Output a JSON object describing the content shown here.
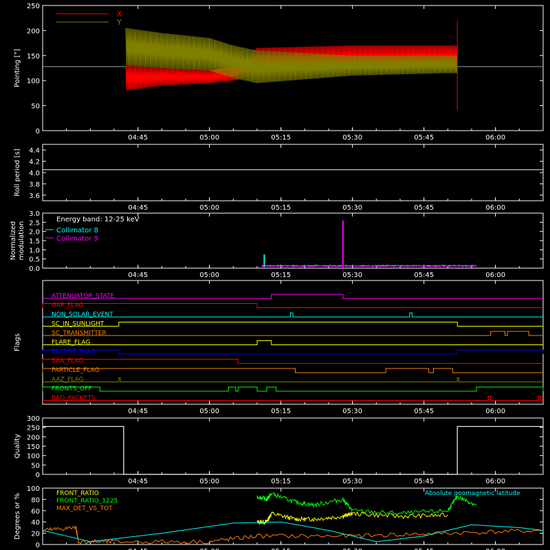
{
  "colors": {
    "background": "#000000",
    "axes": "#ffffff",
    "x_series": "#ff0000",
    "y_series": "#808000",
    "cyan": "#00ffff",
    "magenta": "#ff00ff",
    "green": "#00ff00",
    "yellow": "#ffff00",
    "orange": "#ff8000"
  },
  "chart_data": [
    {
      "type": "line",
      "ylabel": "Pointing [\"]",
      "ylim": [
        0,
        250
      ],
      "yticks": [
        "0",
        "50",
        "100",
        "150",
        "200",
        "250"
      ],
      "xticks": [
        "04:45",
        "05:00",
        "05:15",
        "05:30",
        "05:45",
        "06:00"
      ],
      "xlim_minutes": [
        265,
        370
      ],
      "legend": [
        "X",
        "Y"
      ],
      "series": [
        {
          "name": "X",
          "band": [
            {
              "t": 282.5,
              "low": 80,
              "high": 130
            },
            {
              "t": 290,
              "low": 90,
              "high": 125
            },
            {
              "t": 300,
              "low": 95,
              "high": 120
            },
            {
              "t": 305,
              "low": 100,
              "high": 128
            },
            {
              "t": 310,
              "low": 110,
              "high": 165
            },
            {
              "t": 330,
              "low": 120,
              "high": 170
            },
            {
              "t": 350,
              "low": 125,
              "high": 170
            }
          ],
          "flat_value": 128
        },
        {
          "name": "Y",
          "band": [
            {
              "t": 282.5,
              "low": 130,
              "high": 205
            },
            {
              "t": 290,
              "low": 125,
              "high": 195
            },
            {
              "t": 300,
              "low": 120,
              "high": 185
            },
            {
              "t": 305,
              "low": 105,
              "high": 170
            },
            {
              "t": 310,
              "low": 95,
              "high": 160
            },
            {
              "t": 330,
              "low": 110,
              "high": 150
            },
            {
              "t": 350,
              "low": 115,
              "high": 150
            }
          ],
          "flat_value": 128
        }
      ]
    },
    {
      "type": "line",
      "ylabel": "Roll period [s]",
      "ylim": [
        3.5,
        4.5
      ],
      "yticks": [
        "3.6",
        "3.8",
        "4.0",
        "4.2",
        "4.4"
      ],
      "xticks": [
        "04:45",
        "05:00",
        "05:15",
        "05:30",
        "05:45",
        "06:00"
      ],
      "series": [
        {
          "name": "",
          "value": 4.05
        }
      ]
    },
    {
      "type": "line",
      "ylabel": "Normalized modulation",
      "ylim": [
        0,
        3.0
      ],
      "yticks": [
        "0.0",
        "0.5",
        "1.0",
        "1.5",
        "2.0",
        "2.5",
        "3.0"
      ],
      "xticks": [
        "04:45",
        "05:00",
        "05:15",
        "05:30",
        "05:45",
        "06:00"
      ],
      "annotation": "Energy band: 12-25 keV",
      "legend": [
        "Collimator 8",
        "Collimator 9"
      ],
      "series": [
        {
          "name": "Collimator 8",
          "spikes": [
            {
              "t": 311.5,
              "v": 0.75
            },
            {
              "t": 320,
              "v": 0.15
            }
          ],
          "base": 0.1
        },
        {
          "name": "Collimator 9",
          "spikes": [
            {
              "t": 328,
              "v": 2.6
            }
          ],
          "base": 0.08
        }
      ]
    },
    {
      "type": "line",
      "ylabel": "Flags",
      "xticks": [
        "04:45",
        "05:00",
        "05:15",
        "05:30",
        "05:45",
        "06:00"
      ],
      "flags": [
        {
          "name": "ATTENUATOR_STATE",
          "color": "#ff00ff",
          "high": [
            [
              313,
              328
            ]
          ]
        },
        {
          "name": "GAP_FLAG",
          "color": "#ff0000",
          "high": [
            [
              265,
              310
            ]
          ]
        },
        {
          "name": "NON_SOLAR_EVENT",
          "color": "#00ffff",
          "high": [
            [
              317,
              317.5
            ],
            [
              342,
              342.5
            ]
          ]
        },
        {
          "name": "SC_IN_SUNLIGHT",
          "color": "#ffff00",
          "high": [
            [
              281,
              352
            ]
          ]
        },
        {
          "name": "SC_TRANSMITTER",
          "color": "#ff8000",
          "high": [
            [
              359,
              362
            ],
            [
              362.5,
              367
            ]
          ]
        },
        {
          "name": "FLARE_FLAG",
          "color": "#ffff00",
          "high": [
            [
              310,
              313
            ]
          ]
        },
        {
          "name": "ECLIPSE_FLAG",
          "color": "#0000ff",
          "high": [
            [
              265,
              281
            ],
            [
              352,
              370
            ]
          ]
        },
        {
          "name": "SAA_FLAG",
          "color": "#ff0000",
          "high": [
            [
              265,
              306
            ]
          ]
        },
        {
          "name": "PARTICLE_FLAG",
          "color": "#ff8000",
          "high": [
            [
              265,
              318
            ],
            [
              337,
              346
            ],
            [
              347,
              351
            ]
          ]
        },
        {
          "name": "AAZ_FLAG",
          "color": "#808000",
          "high": [
            [
              281,
              281.3
            ],
            [
              352,
              352.3
            ]
          ]
        },
        {
          "name": "FRONTS_OFF",
          "color": "#00ff00",
          "high": [
            [
              265,
              277
            ],
            [
              304,
              305.5
            ],
            [
              306,
              310
            ],
            [
              312,
              314
            ],
            [
              356,
              370
            ]
          ]
        },
        {
          "name": "BAD_PACKETS",
          "color": "#ff0000",
          "high": [
            [
              358.5,
              359
            ],
            [
              369,
              369.5
            ]
          ]
        }
      ]
    },
    {
      "type": "line",
      "ylabel": "Quality",
      "ylim": [
        0,
        300
      ],
      "yticks": [
        "0",
        "50",
        "100",
        "150",
        "200",
        "250",
        "300"
      ],
      "xticks": [
        "04:45",
        "05:00",
        "05:15",
        "05:30",
        "05:45",
        "06:00"
      ],
      "series": [
        {
          "name": "",
          "steps": [
            {
              "t": 265,
              "v": 255
            },
            {
              "t": 282,
              "v": 255
            },
            {
              "t": 282,
              "v": 0
            },
            {
              "t": 352,
              "v": 0
            },
            {
              "t": 352,
              "v": 255
            },
            {
              "t": 370,
              "v": 255
            }
          ]
        }
      ]
    },
    {
      "type": "line",
      "ylabel": "Degrees or %",
      "ylim": [
        0,
        100
      ],
      "yticks": [
        "0",
        "20",
        "40",
        "60",
        "80",
        "100"
      ],
      "xticks": [
        "04:45",
        "05:00",
        "05:15",
        "05:30",
        "05:45",
        "06:00"
      ],
      "legend": [
        "FRONT_RATIO",
        "FRONT_RATIO_1225",
        "MAX_DET_VS_TOT"
      ],
      "annotation": "Absolute geomagnetic latitude",
      "series": [
        {
          "name": "FRONT_RATIO",
          "x": [
            310,
            312,
            313,
            318,
            322,
            328,
            330,
            340,
            350
          ],
          "y": [
            40,
            40,
            55,
            45,
            45,
            50,
            55,
            50,
            52
          ]
        },
        {
          "name": "FRONT_RATIO_1225",
          "x": [
            310,
            312,
            313,
            318,
            322,
            328,
            330,
            340,
            350,
            352,
            356
          ],
          "y": [
            85,
            80,
            90,
            75,
            70,
            80,
            60,
            55,
            60,
            85,
            70
          ]
        },
        {
          "name": "MAX_DET_VS_TOT",
          "x": [
            265,
            272,
            272.5,
            280,
            300,
            310,
            330,
            350,
            370
          ],
          "y": [
            25,
            30,
            5,
            5,
            5,
            15,
            15,
            20,
            25
          ]
        },
        {
          "name": "Absolute geomagnetic latitude",
          "x": [
            265,
            275,
            290,
            305,
            315,
            325,
            335,
            345,
            355,
            365,
            370
          ],
          "y": [
            25,
            5,
            20,
            38,
            40,
            25,
            5,
            15,
            35,
            30,
            25
          ]
        }
      ]
    }
  ]
}
